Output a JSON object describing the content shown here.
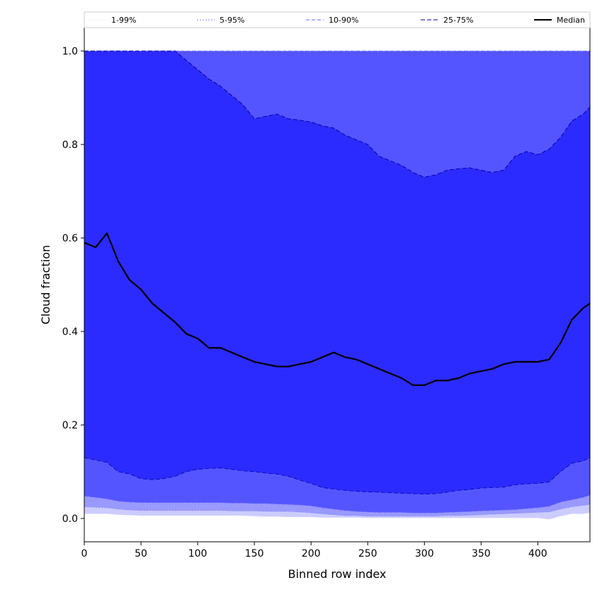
{
  "chart_data": {
    "type": "area",
    "xlabel": "Binned row index",
    "ylabel": "Cloud fraction",
    "xlim": [
      0,
      446
    ],
    "ylim": [
      -0.05,
      1.05
    ],
    "xticks": [
      0,
      50,
      100,
      150,
      200,
      250,
      300,
      350,
      400
    ],
    "yticks": [
      0.0,
      0.2,
      0.4,
      0.6,
      0.8,
      1.0
    ],
    "ytick_labels": [
      "0.0",
      "0.2",
      "0.4",
      "0.6",
      "0.8",
      "1.0"
    ],
    "legend_position": "top",
    "x": [
      0,
      10,
      20,
      30,
      40,
      50,
      60,
      70,
      80,
      90,
      100,
      110,
      120,
      130,
      140,
      150,
      160,
      170,
      180,
      190,
      200,
      210,
      220,
      230,
      240,
      250,
      260,
      270,
      280,
      290,
      300,
      310,
      320,
      330,
      340,
      350,
      360,
      370,
      380,
      390,
      400,
      410,
      420,
      430,
      440,
      446
    ],
    "bands": [
      {
        "name": "1-99%",
        "color": "#ccccff",
        "line_color": "#d8d8ff",
        "dash": "1,2",
        "lower": [
          0.01,
          0.01,
          0.01,
          0.008,
          0.007,
          0.006,
          0.006,
          0.006,
          0.006,
          0.006,
          0.006,
          0.006,
          0.006,
          0.006,
          0.006,
          0.005,
          0.004,
          0.004,
          0.003,
          0.003,
          0.003,
          0.002,
          0.002,
          0.002,
          0.002,
          0.001,
          0.001,
          0.001,
          0.001,
          0.001,
          0.001,
          0.001,
          0.001,
          0.001,
          0.001,
          0.001,
          0.001,
          0.001,
          0.001,
          0.001,
          0.001,
          -0.002,
          0.005,
          0.01,
          0.01,
          0.012
        ],
        "upper": [
          1,
          1,
          1,
          1,
          1,
          1,
          1,
          1,
          1,
          1,
          1,
          1,
          1,
          1,
          1,
          1,
          1,
          1,
          1,
          1,
          1,
          1,
          1,
          1,
          1,
          1,
          1,
          1,
          1,
          1,
          1,
          1,
          1,
          1,
          1,
          1,
          1,
          1,
          1,
          1,
          1,
          1,
          1,
          1,
          1,
          1
        ]
      },
      {
        "name": "5-95%",
        "color": "#9999ff",
        "line_color": "#8080ff",
        "dash": "2,2",
        "lower": [
          0.025,
          0.024,
          0.023,
          0.02,
          0.018,
          0.017,
          0.017,
          0.017,
          0.017,
          0.017,
          0.017,
          0.017,
          0.017,
          0.016,
          0.016,
          0.016,
          0.015,
          0.015,
          0.015,
          0.014,
          0.012,
          0.01,
          0.008,
          0.006,
          0.006,
          0.005,
          0.005,
          0.005,
          0.005,
          0.005,
          0.005,
          0.005,
          0.006,
          0.006,
          0.007,
          0.008,
          0.009,
          0.01,
          0.011,
          0.012,
          0.013,
          0.014,
          0.02,
          0.025,
          0.028,
          0.03
        ],
        "upper": [
          1,
          1,
          1,
          1,
          1,
          1,
          1,
          1,
          1,
          1,
          1,
          1,
          1,
          1,
          1,
          1,
          1,
          1,
          1,
          1,
          1,
          1,
          1,
          1,
          1,
          1,
          1,
          1,
          1,
          1,
          1,
          1,
          1,
          1,
          1,
          1,
          1,
          1,
          1,
          1,
          1,
          1,
          1,
          1,
          1,
          1
        ]
      },
      {
        "name": "10-90%",
        "color": "#5555ff",
        "line_color": "#6666ff",
        "dash": "5,3",
        "lower": [
          0.048,
          0.045,
          0.042,
          0.037,
          0.035,
          0.034,
          0.034,
          0.034,
          0.034,
          0.034,
          0.034,
          0.034,
          0.034,
          0.033,
          0.033,
          0.032,
          0.032,
          0.031,
          0.03,
          0.029,
          0.027,
          0.023,
          0.02,
          0.017,
          0.015,
          0.014,
          0.013,
          0.013,
          0.013,
          0.012,
          0.012,
          0.012,
          0.013,
          0.014,
          0.015,
          0.016,
          0.017,
          0.018,
          0.019,
          0.021,
          0.023,
          0.026,
          0.035,
          0.04,
          0.045,
          0.05
        ],
        "upper": [
          1,
          1,
          1,
          1,
          1,
          1,
          1,
          1,
          1,
          1,
          1,
          1,
          1,
          1,
          1,
          1,
          1,
          1,
          1,
          1,
          1,
          1,
          1,
          1,
          1,
          1,
          1,
          1,
          1,
          1,
          1,
          1,
          1,
          1,
          1,
          1,
          1,
          1,
          1,
          1,
          1,
          1,
          1,
          1,
          1,
          1
        ]
      },
      {
        "name": "25-75%",
        "color": "#2b2bff",
        "line_color": "#0000aa",
        "dash": "6,3",
        "lower": [
          0.13,
          0.125,
          0.12,
          0.1,
          0.095,
          0.085,
          0.083,
          0.085,
          0.09,
          0.1,
          0.105,
          0.107,
          0.108,
          0.105,
          0.102,
          0.1,
          0.097,
          0.095,
          0.09,
          0.082,
          0.075,
          0.066,
          0.063,
          0.06,
          0.058,
          0.057,
          0.056,
          0.055,
          0.054,
          0.053,
          0.052,
          0.053,
          0.056,
          0.06,
          0.062,
          0.065,
          0.066,
          0.067,
          0.072,
          0.074,
          0.075,
          0.078,
          0.1,
          0.118,
          0.123,
          0.13
        ],
        "upper": [
          1,
          1,
          1,
          1,
          1,
          1,
          1,
          1,
          1,
          0.98,
          0.96,
          0.94,
          0.925,
          0.905,
          0.885,
          0.855,
          0.86,
          0.865,
          0.855,
          0.852,
          0.848,
          0.84,
          0.835,
          0.82,
          0.81,
          0.8,
          0.775,
          0.765,
          0.755,
          0.74,
          0.73,
          0.735,
          0.745,
          0.748,
          0.75,
          0.745,
          0.74,
          0.745,
          0.775,
          0.785,
          0.778,
          0.79,
          0.815,
          0.85,
          0.865,
          0.88
        ]
      }
    ],
    "median": {
      "name": "Median",
      "color": "#000000",
      "values": [
        0.59,
        0.58,
        0.61,
        0.55,
        0.51,
        0.49,
        0.46,
        0.44,
        0.42,
        0.395,
        0.385,
        0.365,
        0.365,
        0.355,
        0.345,
        0.335,
        0.33,
        0.325,
        0.325,
        0.33,
        0.335,
        0.345,
        0.355,
        0.345,
        0.34,
        0.33,
        0.32,
        0.31,
        0.3,
        0.285,
        0.285,
        0.295,
        0.295,
        0.3,
        0.31,
        0.315,
        0.32,
        0.33,
        0.335,
        0.335,
        0.335,
        0.34,
        0.375,
        0.425,
        0.45,
        0.46
      ]
    }
  }
}
